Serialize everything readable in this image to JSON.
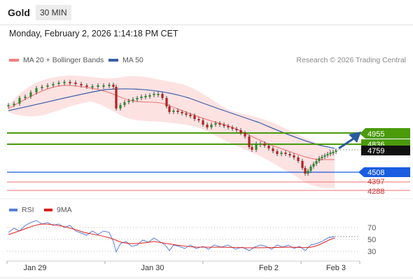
{
  "header": {
    "instrument": "Gold",
    "timeframe": "30 MIN"
  },
  "datetime": "Monday, February 2, 2026 1:14:18 PM CET",
  "legend": {
    "ma20_label": "MA 20 + Bollinger Bands",
    "ma50_label": "MA 50",
    "credit": "Research © 2026 Trading Central"
  },
  "colors": {
    "ma20": "#f08080",
    "ma50": "#3a5da8",
    "band": "#fde2e2",
    "resistance": "#4a9a0a",
    "pivot": "#1a5de0",
    "support": "#e05050",
    "rsi": "#5a7fd8",
    "rsi_ma": "#e02020",
    "arrow": "#2a5aa0",
    "candle_up": "#2e8b2e",
    "candle_down": "#b22222"
  },
  "levels": {
    "resistance_2": "4955",
    "resistance_1": "4836",
    "current_price": "4759",
    "pivot": "4508",
    "support_1": "4397",
    "support_2": "4288"
  },
  "rsi_legend": {
    "rsi_label": "RSI",
    "ma_label": "9MA"
  },
  "rsi_axis": [
    "70",
    "50",
    "30"
  ],
  "x_axis": [
    "Jan 29",
    "Jan 30",
    "Feb 2",
    "Feb 3"
  ]
}
